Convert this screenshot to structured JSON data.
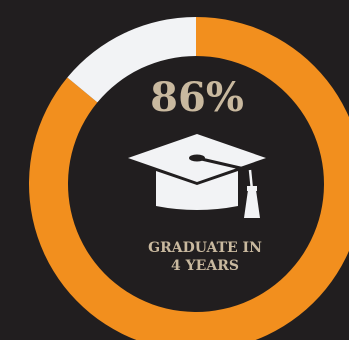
{
  "chart_data": {
    "type": "pie",
    "variant": "donut",
    "categories": [
      "Graduate in 4 years",
      "Other"
    ],
    "values": [
      86,
      14
    ],
    "unit": "%",
    "colors": [
      "#f28f1e",
      "#f2f3f5"
    ],
    "center_value": "86%",
    "label_line1": "GRADUATE IN",
    "label_line2": "4 YEARS"
  },
  "colors": {
    "background": "#211e1f",
    "center_value_text": "#c9b99f",
    "icon": "#f2f3f5",
    "label_text": "#c9b99f"
  },
  "icon": "graduation-cap-icon"
}
